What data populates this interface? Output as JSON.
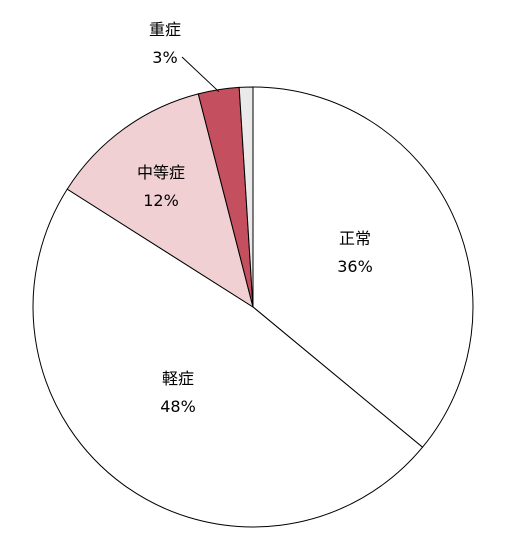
{
  "chart_data": {
    "type": "pie",
    "title": "",
    "slices": [
      {
        "name": "正常",
        "value": 36,
        "value_label": "36%",
        "color": "#ffffff"
      },
      {
        "name": "軽症",
        "value": 48,
        "value_label": "48%",
        "color": "#ffffff"
      },
      {
        "name": "中等症",
        "value": 12,
        "value_label": "12%",
        "color": "#f0d0d3"
      },
      {
        "name": "重症",
        "value": 3,
        "value_label": "3%",
        "color": "#c44f5e"
      },
      {
        "name": "",
        "value": 1,
        "value_label": "",
        "color": "#eaeaea"
      }
    ],
    "start_angle_deg": 0,
    "direction": "clockwise",
    "legend": "none",
    "stroke_color": "#000000"
  }
}
